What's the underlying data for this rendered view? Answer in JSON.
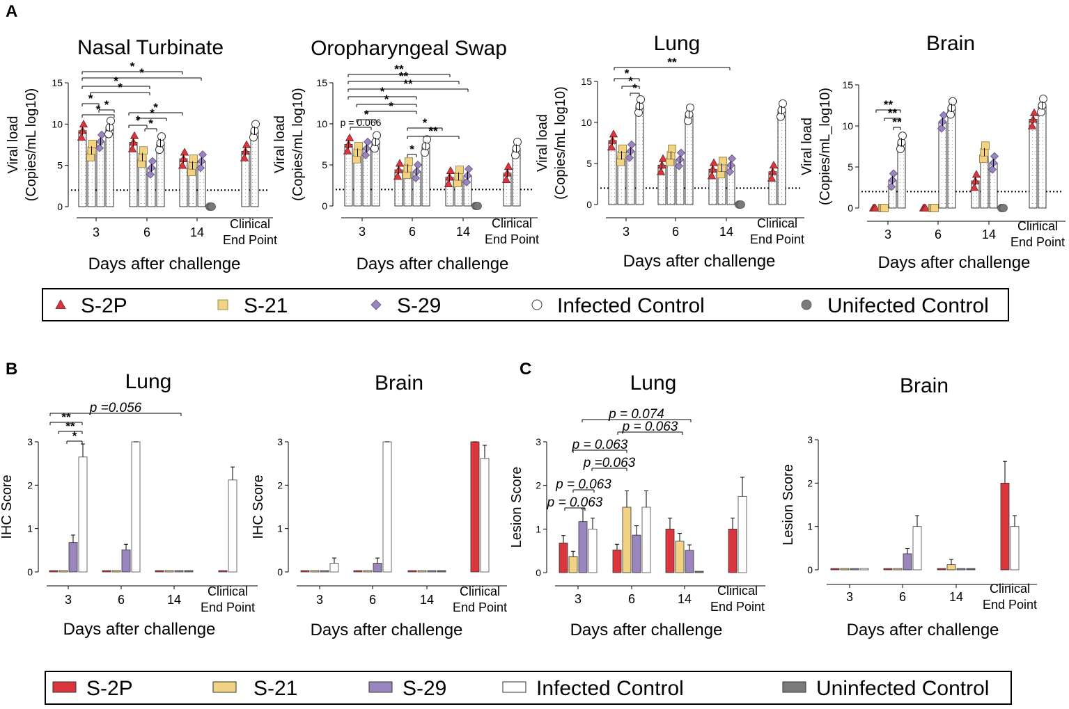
{
  "panel_labels": {
    "a": "A",
    "b": "B",
    "c": "C"
  },
  "legend_a": [
    {
      "name": "S-2P",
      "marker": "triangle",
      "color": "#d9363e"
    },
    {
      "name": "S-21",
      "marker": "square",
      "color": "#f2d384"
    },
    {
      "name": "S-29",
      "marker": "diamond",
      "color": "#9b85bf"
    },
    {
      "name": "Infected Control",
      "marker": "circle",
      "color": "#ffffff"
    },
    {
      "name": "Unifected Control",
      "marker": "filled-circle",
      "color": "#7a7a7a"
    }
  ],
  "legend_b": [
    {
      "name": "S-2P",
      "color": "#d9363e"
    },
    {
      "name": "S-21",
      "color": "#f2d384"
    },
    {
      "name": "S-29",
      "color": "#9b85bf"
    },
    {
      "name": "Infected Control",
      "color": "#ffffff"
    },
    {
      "name": "Uninfected Control",
      "color": "#7a7a7a"
    }
  ],
  "chart_data": [
    {
      "type": "bar",
      "panel": "A",
      "title": "Nasal Turbinate",
      "xlabel": "Days after challenge",
      "ylabel": "Viral load\n(Copies/mL log10)",
      "ylim": [
        0,
        15
      ],
      "yticks": [
        "0",
        "5",
        "10",
        "15"
      ],
      "detection_limit": 2,
      "categories": [
        "3",
        "6",
        "14",
        "Clinical\nEnd Point"
      ],
      "series": [
        {
          "name": "S-2P",
          "values": [
            9.2,
            7.8,
            5.8,
            6.7
          ]
        },
        {
          "name": "S-21",
          "values": [
            6.8,
            6.0,
            5.0,
            null
          ]
        },
        {
          "name": "S-29",
          "values": [
            7.9,
            4.7,
            5.5,
            null
          ]
        },
        {
          "name": "Infected Control",
          "values": [
            9.6,
            7.7,
            null,
            9.2
          ]
        },
        {
          "name": "Unifected Control",
          "values": [
            null,
            null,
            0,
            null
          ]
        }
      ],
      "annotations": [
        "*",
        "*",
        "*",
        "*",
        "*",
        "*",
        "*",
        "*",
        "*",
        "*",
        "*"
      ]
    },
    {
      "type": "bar",
      "panel": "A",
      "title": "Oropharyngeal Swap",
      "xlabel": "Days after challenge",
      "ylabel": "Viral load\n(Copies/mL log10)",
      "ylim": [
        0,
        15
      ],
      "yticks": [
        "0",
        "5",
        "10",
        "15"
      ],
      "detection_limit": 2,
      "categories": [
        "3",
        "6",
        "14",
        "Clinical\nEnd Point"
      ],
      "series": [
        {
          "name": "S-2P",
          "values": [
            7.5,
            4.4,
            3.5,
            4.0
          ]
        },
        {
          "name": "S-21",
          "values": [
            6.5,
            4.6,
            3.6,
            null
          ]
        },
        {
          "name": "S-29",
          "values": [
            7.0,
            4.2,
            3.7,
            null
          ]
        },
        {
          "name": "Infected Control",
          "values": [
            7.8,
            7.3,
            null,
            7.0
          ]
        },
        {
          "name": "Unifected Control",
          "values": [
            null,
            null,
            0,
            null
          ]
        }
      ],
      "annotations": [
        "**",
        "**",
        "**",
        "*",
        "*",
        "*",
        "*",
        "p = 0.066",
        "*",
        "**",
        "*"
      ]
    },
    {
      "type": "bar",
      "panel": "A",
      "title": "Lung",
      "xlabel": "Days after challenge",
      "ylabel": "Viral load\n(Copies/mL log10)",
      "ylim": [
        0,
        15
      ],
      "yticks": [
        "0",
        "5",
        "10",
        "15"
      ],
      "detection_limit": 2,
      "categories": [
        "3",
        "6",
        "14",
        "Clinical\nEnd Point"
      ],
      "series": [
        {
          "name": "S-2P",
          "values": [
            7.8,
            4.8,
            4.3,
            4.0
          ]
        },
        {
          "name": "S-21",
          "values": [
            6.0,
            6.0,
            4.5,
            null
          ]
        },
        {
          "name": "S-29",
          "values": [
            6.5,
            5.5,
            4.8,
            null
          ]
        },
        {
          "name": "Infected Control",
          "values": [
            12.0,
            11.0,
            null,
            11.5
          ]
        },
        {
          "name": "Unifected Control",
          "values": [
            null,
            null,
            0,
            null
          ]
        }
      ],
      "annotations": [
        "*",
        "*",
        "*",
        "**"
      ]
    },
    {
      "type": "bar",
      "panel": "A",
      "title": "Brain",
      "xlabel": "Days after challenge",
      "ylabel": "Viral load\n(Copies/mL_log10)",
      "ylim": [
        0,
        15
      ],
      "yticks": [
        "0",
        "5",
        "10",
        "15"
      ],
      "detection_limit": 2,
      "categories": [
        "3",
        "6",
        "14",
        "Clinical\nEnd Point"
      ],
      "series": [
        {
          "name": "S-2P",
          "values": [
            0,
            0,
            3.3,
            10.8
          ]
        },
        {
          "name": "S-21",
          "values": [
            0,
            0,
            6.8,
            null
          ]
        },
        {
          "name": "S-29",
          "values": [
            3.4,
            10.5,
            5.5,
            null
          ]
        },
        {
          "name": "Infected Control",
          "values": [
            8.0,
            12.2,
            null,
            12.5
          ]
        },
        {
          "name": "Unifected Control",
          "values": [
            null,
            null,
            0,
            null
          ]
        }
      ],
      "annotations": [
        "**",
        "**",
        "**"
      ]
    },
    {
      "type": "bar",
      "panel": "B",
      "title": "Lung",
      "xlabel": "Days after challenge",
      "ylabel": "IHC Score",
      "ylim": [
        0,
        3
      ],
      "yticks": [
        "0",
        "1",
        "2",
        "3"
      ],
      "categories": [
        "3",
        "6",
        "14",
        "Clinical\nEnd Point"
      ],
      "series": [
        {
          "name": "S-2P",
          "values": [
            0.03,
            0.03,
            0.03,
            0.03
          ]
        },
        {
          "name": "S-21",
          "values": [
            0.03,
            0.03,
            0.03,
            null
          ]
        },
        {
          "name": "S-29",
          "values": [
            0.68,
            0.51,
            0.03,
            null
          ]
        },
        {
          "name": "Infected Control",
          "values": [
            2.65,
            3.0,
            null,
            2.12
          ]
        },
        {
          "name": "Uninfected Control",
          "values": [
            null,
            null,
            0.03,
            null
          ]
        }
      ],
      "annotations": [
        "**",
        "**",
        "*",
        "p =0.056"
      ]
    },
    {
      "type": "bar",
      "panel": "B",
      "title": "Brain",
      "xlabel": "Days after challenge",
      "ylabel": "IHC Score",
      "ylim": [
        0,
        3
      ],
      "yticks": [
        "0",
        "1",
        "2",
        "3"
      ],
      "categories": [
        "3",
        "6",
        "14",
        "Clinical\nEnd Point"
      ],
      "series": [
        {
          "name": "S-2P",
          "values": [
            0.03,
            0.03,
            0.03,
            3.0
          ]
        },
        {
          "name": "S-21",
          "values": [
            0.03,
            0.03,
            0.03,
            null
          ]
        },
        {
          "name": "S-29",
          "values": [
            0.03,
            0.2,
            0.03,
            null
          ]
        },
        {
          "name": "Infected Control",
          "values": [
            0.2,
            3.0,
            null,
            2.62
          ]
        },
        {
          "name": "Uninfected Control",
          "values": [
            null,
            null,
            0.03,
            null
          ]
        }
      ],
      "annotations": []
    },
    {
      "type": "bar",
      "panel": "C",
      "title": "Lung",
      "xlabel": "Days after challenge",
      "ylabel": "Lesion Score",
      "ylim": [
        0,
        3
      ],
      "yticks": [
        "0",
        "1",
        "2",
        "3"
      ],
      "categories": [
        "3",
        "6",
        "14",
        "Clinical\nEnd Point"
      ],
      "series": [
        {
          "name": "S-2P",
          "values": [
            0.68,
            0.52,
            1.0,
            1.0
          ]
        },
        {
          "name": "S-21",
          "values": [
            0.37,
            1.5,
            0.72,
            null
          ]
        },
        {
          "name": "S-29",
          "values": [
            1.17,
            0.86,
            0.51,
            null
          ]
        },
        {
          "name": "Infected Control",
          "values": [
            1.0,
            1.5,
            null,
            1.75
          ]
        },
        {
          "name": "Uninfected Control",
          "values": [
            null,
            null,
            0.03,
            null
          ]
        }
      ],
      "annotations": [
        "p = 0.074",
        "p = 0.063",
        "p = 0.063",
        "p =0.063",
        "p = 0.063",
        "p = 0.063"
      ]
    },
    {
      "type": "bar",
      "panel": "C",
      "title": "Brain",
      "xlabel": "Days after challenge",
      "ylabel": "Lesion Score",
      "ylim": [
        0,
        3
      ],
      "yticks": [
        "0",
        "1",
        "2",
        "3"
      ],
      "categories": [
        "3",
        "6",
        "14",
        "Clinical\nEnd Point"
      ],
      "series": [
        {
          "name": "S-2P",
          "values": [
            0.03,
            0.03,
            0.03,
            2.0
          ]
        },
        {
          "name": "S-21",
          "values": [
            0.03,
            0.03,
            0.12,
            null
          ]
        },
        {
          "name": "S-29",
          "values": [
            0.03,
            0.37,
            0.03,
            null
          ]
        },
        {
          "name": "Infected Control",
          "values": [
            0.03,
            1.0,
            null,
            1.0
          ]
        },
        {
          "name": "Uninfected Control",
          "values": [
            null,
            null,
            0.03,
            null
          ]
        }
      ],
      "annotations": []
    }
  ]
}
